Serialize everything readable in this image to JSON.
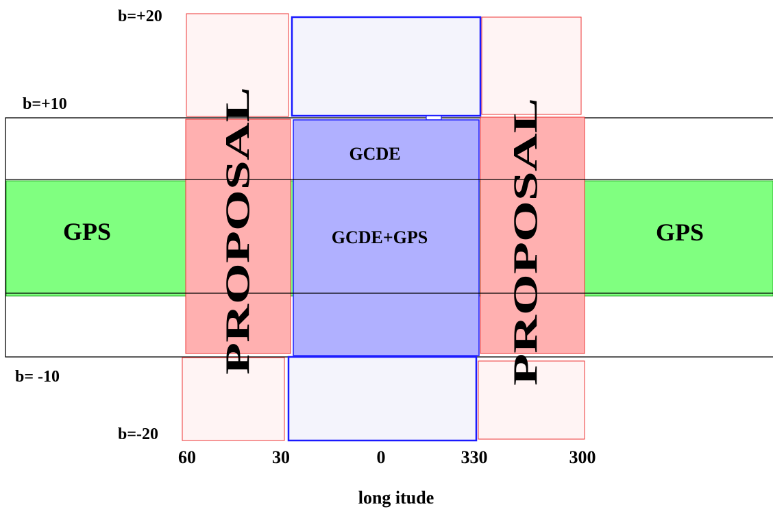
{
  "diagram": {
    "b_labels": {
      "top20": "b=+20",
      "top10": "b=+10",
      "bot10": "b= -10",
      "bot20": "b=-20"
    },
    "longitude_ticks": [
      "60",
      "30",
      "0",
      "330",
      "300"
    ],
    "x_axis_label": "long itude",
    "regions": {
      "gps_left": "GPS",
      "gps_right": "GPS",
      "gcde": "GCDE",
      "gcde_gps": "GCDE+GPS",
      "proposal_left": "PROPOSAL",
      "proposal_right": "PROPOSAL"
    },
    "colors": {
      "gps_fill": "#80ff80",
      "proposal_fill": "#ffb0b0",
      "proposal_border": "#ee3333",
      "proposal_light_fill": "#fff4f4",
      "gcde_fill": "#b0b0ff",
      "gcde_light_fill": "#f4f4fc",
      "gcde_border": "#1a1aff"
    }
  }
}
